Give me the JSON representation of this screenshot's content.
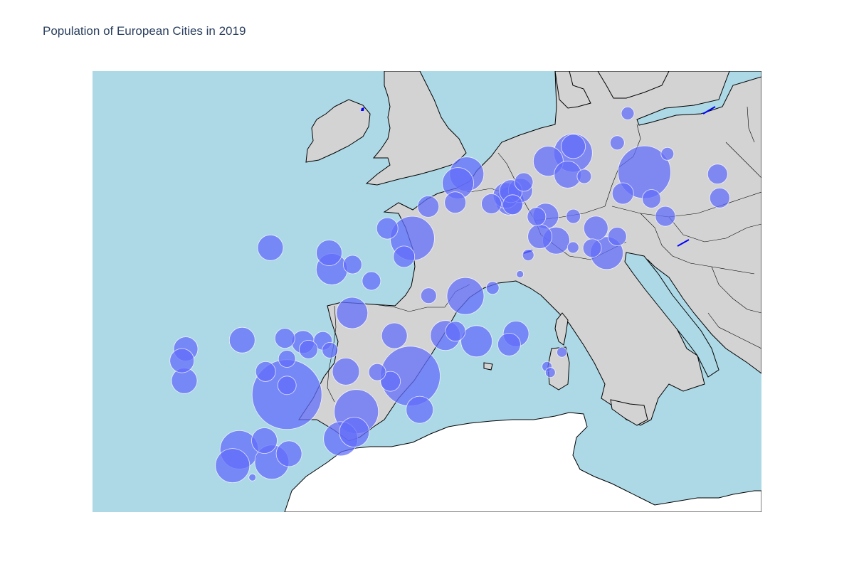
{
  "title": "Population of European Cities in 2019",
  "colors": {
    "ocean": "#add8e6",
    "land": "#d3d3d3",
    "outside": "#ffffff",
    "border": "#000000",
    "bubble": "#636efa",
    "lake": "#0000ff"
  },
  "chart_data": {
    "type": "scatter",
    "projection": "geographic",
    "lon_range": [
      -13,
      19
    ],
    "lat_range": [
      34,
      58
    ],
    "marker_style": "bubble, size proportional to population",
    "points": [
      {
        "lon": -3.7,
        "lat": 40.4,
        "size": 49
      },
      {
        "lon": 2.2,
        "lat": 41.4,
        "size": 42
      },
      {
        "lon": 2.3,
        "lat": 48.9,
        "size": 31
      },
      {
        "lon": 13.4,
        "lat": 52.5,
        "size": 37
      },
      {
        "lon": 9.99,
        "lat": 53.55,
        "size": 27
      },
      {
        "lon": 11.6,
        "lat": 48.1,
        "size": 23
      },
      {
        "lon": 8.8,
        "lat": 53.1,
        "size": 21
      },
      {
        "lon": 4.9,
        "lat": 52.4,
        "size": 24
      },
      {
        "lon": 4.48,
        "lat": 51.9,
        "size": 22
      },
      {
        "lon": 6.96,
        "lat": 50.94,
        "size": 20
      },
      {
        "lon": 6.78,
        "lat": 51.23,
        "size": 18
      },
      {
        "lon": 7.47,
        "lat": 51.51,
        "size": 17
      },
      {
        "lon": 7.01,
        "lat": 51.46,
        "size": 16
      },
      {
        "lon": 6.08,
        "lat": 50.78,
        "size": 14
      },
      {
        "lon": 8.68,
        "lat": 50.11,
        "size": 18
      },
      {
        "lon": 9.18,
        "lat": 48.78,
        "size": 19
      },
      {
        "lon": 8.4,
        "lat": 49.0,
        "size": 17
      },
      {
        "lon": 10.0,
        "lat": 50.1,
        "size": 10
      },
      {
        "lon": 9.73,
        "lat": 52.37,
        "size": 19
      },
      {
        "lon": 7.63,
        "lat": 51.96,
        "size": 13
      },
      {
        "lon": 10.52,
        "lat": 52.27,
        "size": 10
      },
      {
        "lon": 12.1,
        "lat": 54.1,
        "size": 10
      },
      {
        "lon": 12.37,
        "lat": 51.34,
        "size": 15
      },
      {
        "lon": 13.74,
        "lat": 51.05,
        "size": 13
      },
      {
        "lon": 11.08,
        "lat": 49.45,
        "size": 17
      },
      {
        "lon": 12.1,
        "lat": 49.0,
        "size": 13
      },
      {
        "lon": 10.9,
        "lat": 48.37,
        "size": 13
      },
      {
        "lon": 9.99,
        "lat": 48.4,
        "size": 8
      },
      {
        "lon": 7.84,
        "lat": 47.99,
        "size": 8
      },
      {
        "lon": 8.24,
        "lat": 50.08,
        "size": 13
      },
      {
        "lon": 7.1,
        "lat": 50.73,
        "size": 14
      },
      {
        "lon": 4.35,
        "lat": 50.85,
        "size": 15
      },
      {
        "lon": 3.06,
        "lat": 50.63,
        "size": 15
      },
      {
        "lon": 1.1,
        "lat": 49.44,
        "size": 15
      },
      {
        "lon": -1.68,
        "lat": 48.11,
        "size": 18
      },
      {
        "lon": -4.49,
        "lat": 48.39,
        "size": 18
      },
      {
        "lon": -1.55,
        "lat": 47.22,
        "size": 22
      },
      {
        "lon": -0.56,
        "lat": 47.47,
        "size": 13
      },
      {
        "lon": 1.9,
        "lat": 47.9,
        "size": 15
      },
      {
        "lon": 0.34,
        "lat": 46.58,
        "size": 13
      },
      {
        "lon": -0.58,
        "lat": 44.84,
        "size": 22
      },
      {
        "lon": 1.44,
        "lat": 43.6,
        "size": 18
      },
      {
        "lon": 3.88,
        "lat": 43.61,
        "size": 21
      },
      {
        "lon": 4.84,
        "lat": 45.76,
        "size": 26
      },
      {
        "lon": 3.08,
        "lat": 45.78,
        "size": 11
      },
      {
        "lon": 5.37,
        "lat": 43.3,
        "size": 22
      },
      {
        "lon": 7.26,
        "lat": 43.7,
        "size": 18
      },
      {
        "lon": 6.93,
        "lat": 43.12,
        "size": 16
      },
      {
        "lon": 4.36,
        "lat": 43.84,
        "size": 14
      },
      {
        "lon": -8.61,
        "lat": 41.15,
        "size": 18
      },
      {
        "lon": -8.54,
        "lat": 42.88,
        "size": 17
      },
      {
        "lon": -8.72,
        "lat": 42.24,
        "size": 17
      },
      {
        "lon": -5.84,
        "lat": 43.36,
        "size": 18
      },
      {
        "lon": -3.8,
        "lat": 43.46,
        "size": 14
      },
      {
        "lon": -2.93,
        "lat": 43.26,
        "size": 16
      },
      {
        "lon": -1.98,
        "lat": 43.32,
        "size": 13
      },
      {
        "lon": -2.67,
        "lat": 42.85,
        "size": 13
      },
      {
        "lon": -1.64,
        "lat": 42.81,
        "size": 11
      },
      {
        "lon": -3.7,
        "lat": 42.34,
        "size": 12
      },
      {
        "lon": -4.72,
        "lat": 41.65,
        "size": 14
      },
      {
        "lon": -0.88,
        "lat": 41.65,
        "size": 19
      },
      {
        "lon": 0.62,
        "lat": 41.62,
        "size": 12
      },
      {
        "lon": 1.25,
        "lat": 41.12,
        "size": 14
      },
      {
        "lon": -0.38,
        "lat": 39.47,
        "size": 31
      },
      {
        "lon": -0.48,
        "lat": 38.35,
        "size": 21
      },
      {
        "lon": -1.13,
        "lat": 37.99,
        "size": 24
      },
      {
        "lon": 2.65,
        "lat": 39.57,
        "size": 19
      },
      {
        "lon": -5.98,
        "lat": 37.39,
        "size": 27
      },
      {
        "lon": -4.42,
        "lat": 36.72,
        "size": 24
      },
      {
        "lon": -4.78,
        "lat": 37.89,
        "size": 18
      },
      {
        "lon": -3.6,
        "lat": 37.18,
        "size": 18
      },
      {
        "lon": -6.3,
        "lat": 36.53,
        "size": 24
      },
      {
        "lon": -3.7,
        "lat": 40.9,
        "size": 13
      },
      {
        "lon": -5.35,
        "lat": 35.89,
        "size": 5
      },
      {
        "lon": 8.74,
        "lat": 41.92,
        "size": 7
      },
      {
        "lon": 9.45,
        "lat": 42.7,
        "size": 7
      },
      {
        "lon": 8.9,
        "lat": 41.6,
        "size": 7
      },
      {
        "lon": 6.14,
        "lat": 46.2,
        "size": 9
      },
      {
        "lon": 7.45,
        "lat": 46.95,
        "size": 5
      },
      {
        "lon": 10.0,
        "lat": 53.9,
        "size": 17
      },
      {
        "lon": 14.5,
        "lat": 53.5,
        "size": 9
      },
      {
        "lon": 16.9,
        "lat": 52.4,
        "size": 14
      },
      {
        "lon": 17.0,
        "lat": 51.1,
        "size": 14
      },
      {
        "lon": 14.4,
        "lat": 50.1,
        "size": 14
      },
      {
        "lon": 12.6,
        "lat": 55.7,
        "size": 9
      }
    ]
  }
}
